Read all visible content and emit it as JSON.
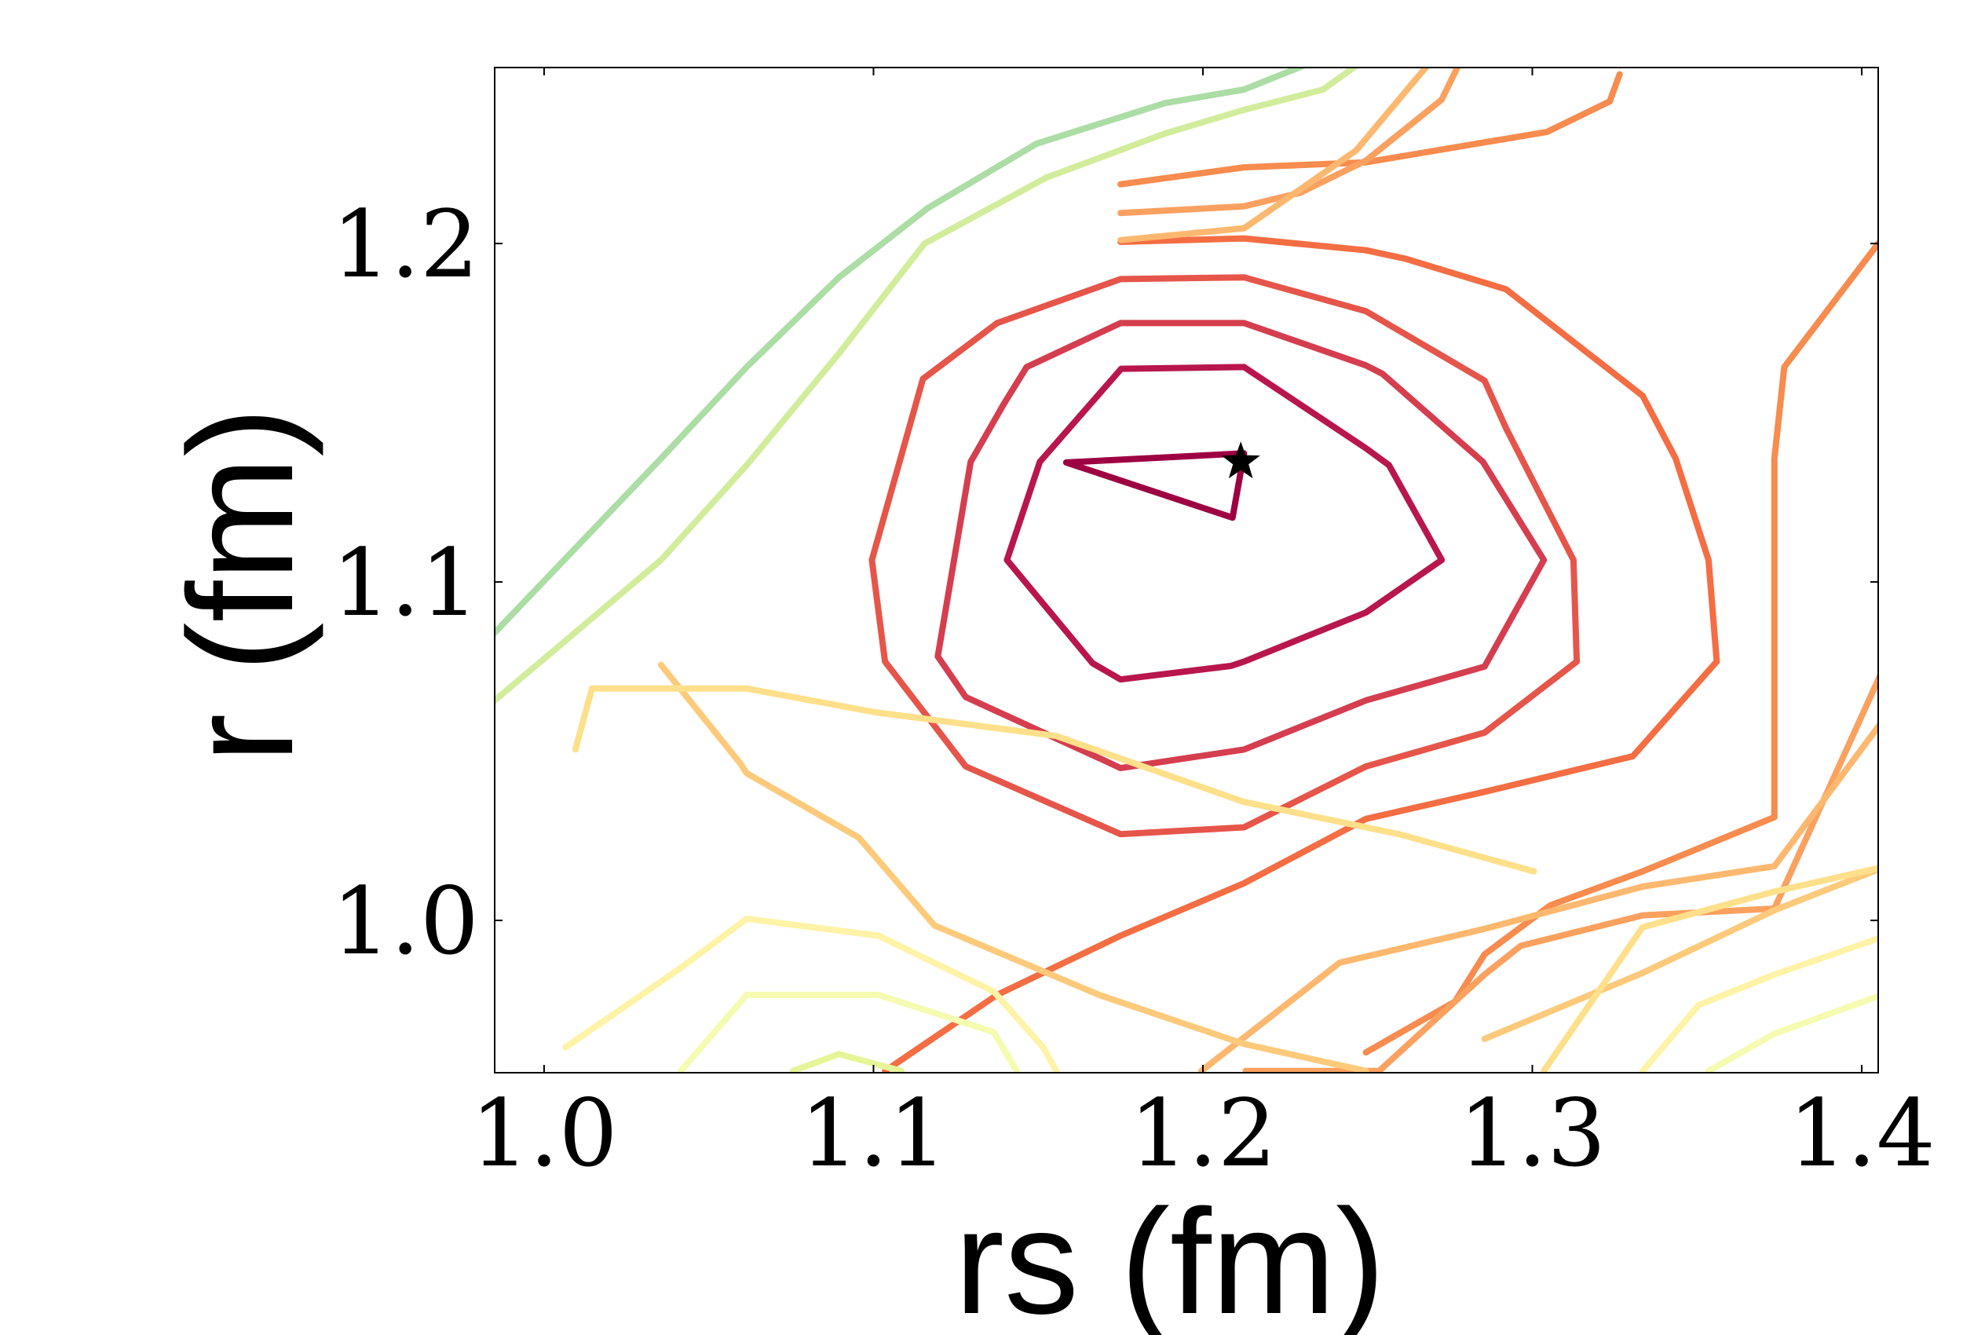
{
  "chart_data": {
    "type": "contour",
    "title": "",
    "xlabel": "rs (fm)",
    "ylabel": "r (fm)",
    "xlim": [
      0.985,
      1.405
    ],
    "ylim": [
      0.955,
      1.252
    ],
    "x_ticks": [
      {
        "value": 1.0,
        "label": "1.0"
      },
      {
        "value": 1.1,
        "label": "1.1"
      },
      {
        "value": 1.2,
        "label": "1.2"
      },
      {
        "value": 1.3,
        "label": "1.3"
      },
      {
        "value": 1.4,
        "label": "1.4"
      }
    ],
    "y_ticks": [
      {
        "value": 1.0,
        "label": "1.0"
      },
      {
        "value": 1.1,
        "label": "1.1"
      },
      {
        "value": 1.2,
        "label": "1.2"
      }
    ],
    "colormap": "Spectral",
    "grid": false,
    "minimum_marker": {
      "x": 1.2115,
      "y": 1.1355,
      "symbol": "star",
      "color": "#000000"
    },
    "contours": [
      {
        "level_rank": 1,
        "color": "#9e0142",
        "points": [
          [
            1.1585,
            1.1353
          ],
          [
            1.2125,
            1.138
          ],
          [
            1.209,
            1.119
          ],
          [
            1.1585,
            1.1353
          ]
        ]
      },
      {
        "level_rank": 2,
        "color": "#b8164d",
        "points": [
          [
            1.1752,
            1.163
          ],
          [
            1.2125,
            1.1635
          ],
          [
            1.2495,
            1.1395
          ],
          [
            1.2565,
            1.1345
          ],
          [
            1.2725,
            1.1065
          ],
          [
            1.2495,
            1.091
          ],
          [
            1.2125,
            1.0765
          ],
          [
            1.2085,
            1.0752
          ],
          [
            1.175,
            1.0712
          ],
          [
            1.1665,
            1.076
          ],
          [
            1.1405,
            1.1065
          ],
          [
            1.1505,
            1.1355
          ],
          [
            1.1752,
            1.163
          ]
        ]
      },
      {
        "level_rank": 3,
        "color": "#d53e4f",
        "points": [
          [
            1.175,
            1.1765
          ],
          [
            1.2125,
            1.1765
          ],
          [
            1.2495,
            1.164
          ],
          [
            1.2545,
            1.1615
          ],
          [
            1.285,
            1.1355
          ],
          [
            1.3035,
            1.1065
          ],
          [
            1.2855,
            1.075
          ],
          [
            1.2495,
            1.065
          ],
          [
            1.2125,
            1.0505
          ],
          [
            1.175,
            1.045
          ],
          [
            1.1695,
            1.0475
          ],
          [
            1.128,
            1.066
          ],
          [
            1.1195,
            1.078
          ],
          [
            1.1295,
            1.1355
          ],
          [
            1.1395,
            1.1525
          ],
          [
            1.1465,
            1.1635
          ],
          [
            1.175,
            1.1765
          ]
        ]
      },
      {
        "level_rank": 4,
        "color": "#e6554a",
        "points": [
          [
            1.175,
            1.1895
          ],
          [
            1.2125,
            1.19
          ],
          [
            1.2495,
            1.18
          ],
          [
            1.2855,
            1.1595
          ],
          [
            1.292,
            1.1455
          ],
          [
            1.3125,
            1.1065
          ],
          [
            1.3135,
            1.0765
          ],
          [
            1.2855,
            1.0555
          ],
          [
            1.2495,
            1.0455
          ],
          [
            1.2125,
            1.0275
          ],
          [
            1.175,
            1.0255
          ],
          [
            1.128,
            1.0455
          ],
          [
            1.1035,
            1.0765
          ],
          [
            1.0995,
            1.1065
          ],
          [
            1.115,
            1.16
          ],
          [
            1.1375,
            1.1765
          ],
          [
            1.175,
            1.1895
          ]
        ]
      },
      {
        "level_rank": 5,
        "color": "#f46d43",
        "points": [
          [
            1.175,
            1.2005
          ],
          [
            1.2125,
            1.2015
          ],
          [
            1.2495,
            1.198
          ],
          [
            1.2615,
            1.1955
          ],
          [
            1.292,
            1.1865
          ],
          [
            1.3335,
            1.155
          ],
          [
            1.3435,
            1.1365
          ],
          [
            1.3535,
            1.1065
          ],
          [
            1.356,
            1.0765
          ],
          [
            1.3305,
            1.0485
          ],
          [
            1.2855,
            1.038
          ],
          [
            1.2495,
            1.03
          ],
          [
            1.2125,
            1.011
          ],
          [
            1.175,
            0.9955
          ],
          [
            1.1375,
            0.978
          ],
          [
            1.1035,
            0.9555
          ]
        ]
      },
      {
        "level_rank": 6,
        "color": "#f88b4e",
        "points": [
          [
            1.175,
            1.2175
          ],
          [
            1.2125,
            1.2225
          ],
          [
            1.2495,
            1.224
          ],
          [
            1.3045,
            1.233
          ],
          [
            1.3235,
            1.242
          ],
          [
            1.3265,
            1.25
          ]
        ]
      },
      {
        "level_rank": 6,
        "color": "#f88b4e",
        "points": [
          [
            1.2495,
            0.961
          ],
          [
            1.2765,
            0.976
          ],
          [
            1.2855,
            0.99
          ],
          [
            1.3055,
            1.0045
          ],
          [
            1.3335,
            1.0145
          ],
          [
            1.3735,
            1.0305
          ],
          [
            1.3735,
            1.1365
          ],
          [
            1.3765,
            1.1635
          ],
          [
            1.405,
            1.2
          ]
        ]
      },
      {
        "level_rank": 7,
        "color": "#fba160",
        "points": [
          [
            1.175,
            1.209
          ],
          [
            1.2125,
            1.211
          ],
          [
            1.2295,
            1.215
          ],
          [
            1.2495,
            1.2245
          ],
          [
            1.2725,
            1.2425
          ],
          [
            1.2775,
            1.2525
          ]
        ]
      },
      {
        "level_rank": 7,
        "color": "#fba160",
        "points": [
          [
            1.213,
            0.9555
          ],
          [
            1.2535,
            0.9555
          ],
          [
            1.2855,
            0.984
          ],
          [
            1.2965,
            0.9925
          ],
          [
            1.3335,
            1.0015
          ],
          [
            1.3735,
            1.0035
          ],
          [
            1.4075,
            1.0765
          ]
        ]
      },
      {
        "level_rank": 8,
        "color": "#fdb86f",
        "points": [
          [
            1.175,
            1.201
          ],
          [
            1.2125,
            1.2045
          ],
          [
            1.2465,
            1.2275
          ],
          [
            1.2685,
            1.253
          ]
        ]
      },
      {
        "level_rank": 8,
        "color": "#fdb86f",
        "points": [
          [
            1.1995,
            0.9555
          ],
          [
            1.2415,
            0.9875
          ],
          [
            1.2855,
            0.9975
          ],
          [
            1.3335,
            1.01
          ],
          [
            1.3735,
            1.016
          ],
          [
            1.4075,
            1.0605
          ]
        ]
      },
      {
        "level_rank": 9,
        "color": "#fdca7b",
        "points": [
          [
            1.0355,
            1.0755
          ],
          [
            1.0595,
            1.0465
          ],
          [
            1.0615,
            1.0435
          ],
          [
            1.0955,
            1.0245
          ],
          [
            1.1185,
            0.9985
          ],
          [
            1.1685,
            0.978
          ],
          [
            1.2125,
            0.9635
          ],
          [
            1.2495,
            0.9555
          ]
        ]
      },
      {
        "level_rank": 9,
        "color": "#fdca7b",
        "points": [
          [
            1.2855,
            0.965
          ],
          [
            1.3335,
            0.9845
          ],
          [
            1.3735,
            1.003
          ],
          [
            1.4075,
            1.016
          ]
        ]
      },
      {
        "level_rank": 10,
        "color": "#fee08b",
        "points": [
          [
            1.0095,
            1.0505
          ],
          [
            1.0145,
            1.0685
          ],
          [
            1.0615,
            1.0685
          ],
          [
            1.1005,
            1.0615
          ],
          [
            1.1555,
            1.0545
          ],
          [
            1.2125,
            1.035
          ],
          [
            1.2595,
            1.0255
          ],
          [
            1.3005,
            1.0145
          ]
        ]
      },
      {
        "level_rank": 10,
        "color": "#fee08b",
        "points": [
          [
            1.3035,
            0.9555
          ],
          [
            1.3335,
            0.998
          ],
          [
            1.3735,
            1.0085
          ],
          [
            1.4075,
            1.016
          ]
        ]
      },
      {
        "level_rank": 11,
        "color": "#fef3a6",
        "points": [
          [
            1.0065,
            0.9625
          ],
          [
            1.0415,
            0.986
          ],
          [
            1.0615,
            1.0005
          ],
          [
            1.1015,
            0.9955
          ],
          [
            1.1365,
            0.979
          ],
          [
            1.1515,
            0.9625
          ],
          [
            1.1555,
            0.9555
          ]
        ]
      },
      {
        "level_rank": 11,
        "color": "#fef3a6",
        "points": [
          [
            1.3335,
            0.9555
          ],
          [
            1.3505,
            0.975
          ],
          [
            1.3735,
            0.984
          ],
          [
            1.4075,
            0.9955
          ]
        ]
      },
      {
        "level_rank": 12,
        "color": "#f5fbb0",
        "points": [
          [
            1.0415,
            0.9555
          ],
          [
            1.0615,
            0.978
          ],
          [
            1.1015,
            0.978
          ],
          [
            1.1365,
            0.967
          ],
          [
            1.1435,
            0.9555
          ]
        ]
      },
      {
        "level_rank": 12,
        "color": "#f5fbb0",
        "points": [
          [
            1.3535,
            0.9555
          ],
          [
            1.3735,
            0.9665
          ],
          [
            1.4075,
            0.9785
          ]
        ]
      },
      {
        "level_rank": 13,
        "color": "#e6f598",
        "points": [
          [
            1.0755,
            0.9555
          ],
          [
            1.0895,
            0.9605
          ],
          [
            1.1085,
            0.9555
          ]
        ]
      },
      {
        "level_rank": 14,
        "color": "#d1ed9c",
        "points": [
          [
            0.985,
            1.065
          ],
          [
            1.0355,
            1.1065
          ],
          [
            1.0615,
            1.1345
          ],
          [
            1.0895,
            1.1675
          ],
          [
            1.1155,
            1.2
          ],
          [
            1.1525,
            1.2195
          ],
          [
            1.1885,
            1.2325
          ],
          [
            1.2125,
            1.2395
          ],
          [
            1.2365,
            1.2455
          ],
          [
            1.2465,
            1.2525
          ]
        ]
      },
      {
        "level_rank": 15,
        "color": "#abdda4",
        "points": [
          [
            0.985,
            1.085
          ],
          [
            1.0355,
            1.1365
          ],
          [
            1.0615,
            1.1635
          ],
          [
            1.0895,
            1.19
          ],
          [
            1.1165,
            1.2105
          ],
          [
            1.1495,
            1.2295
          ],
          [
            1.1885,
            1.2415
          ],
          [
            1.2125,
            1.2455
          ],
          [
            1.2305,
            1.2525
          ]
        ]
      }
    ]
  }
}
